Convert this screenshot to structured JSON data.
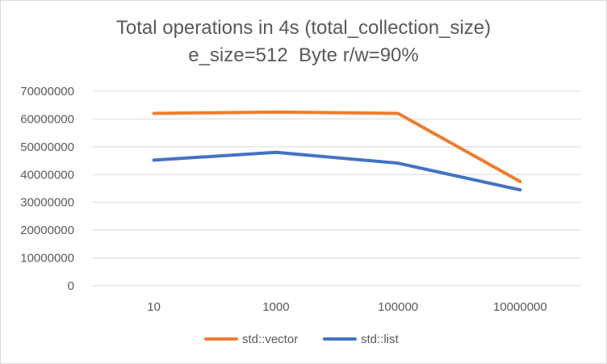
{
  "chart_data": {
    "type": "line",
    "title_line1": "Total operations in 4s (total_collection_size)",
    "title_line2": "e_size=512  Byte r/w=90%",
    "xlabel": "",
    "ylabel": "",
    "categories": [
      "10",
      "1000",
      "100000",
      "10000000"
    ],
    "ylim": [
      0,
      70000000
    ],
    "yticks": [
      0,
      10000000,
      20000000,
      30000000,
      40000000,
      50000000,
      60000000,
      70000000
    ],
    "grid": true,
    "legend_position": "bottom",
    "series": [
      {
        "name": "std::vector",
        "color": "#ED7D31",
        "values": [
          62000000,
          62500000,
          62000000,
          37500000
        ]
      },
      {
        "name": "std::list",
        "color": "#4472C4",
        "values": [
          45200000,
          48000000,
          44100000,
          34500000
        ]
      }
    ]
  }
}
